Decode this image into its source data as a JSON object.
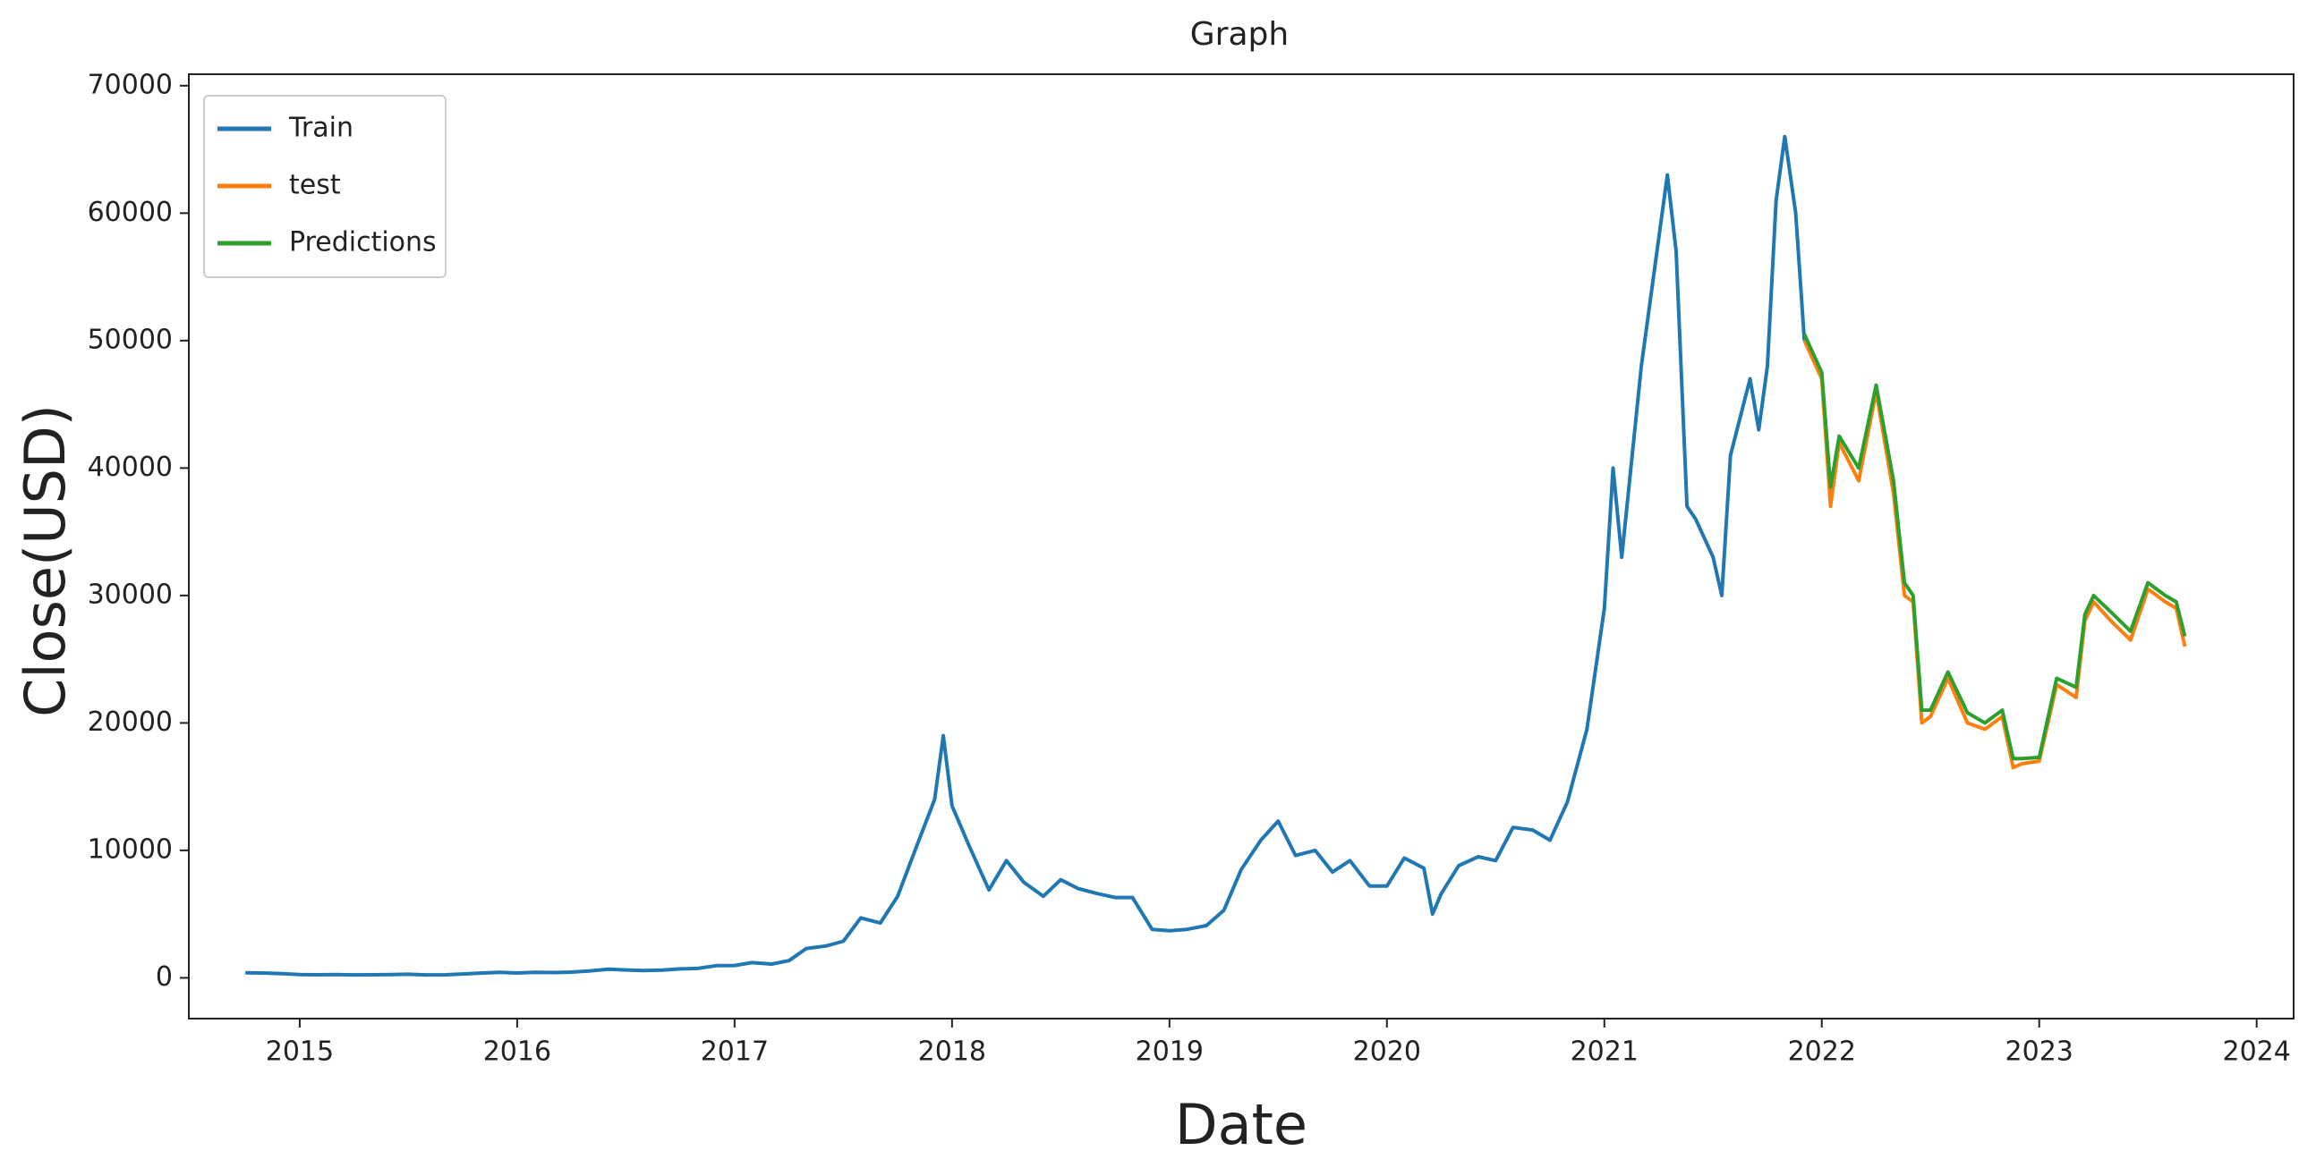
{
  "chart_data": {
    "type": "line",
    "title": "Graph",
    "x_label": "Date",
    "y_label": "Close(USD)",
    "xlim": [
      2014.49,
      2024.17
    ],
    "xticks": [
      2015,
      2016,
      2017,
      2018,
      2019,
      2020,
      2021,
      2022,
      2023,
      2024
    ],
    "ylim": [
      -3200,
      70900
    ],
    "yticks": [
      0,
      10000,
      20000,
      30000,
      40000,
      50000,
      60000,
      70000
    ],
    "legend": "upper left",
    "grid": false,
    "series": [
      {
        "name": "Train",
        "color": "#1f77b4",
        "x": [
          2014.75,
          2014.83,
          2014.92,
          2015.0,
          2015.08,
          2015.17,
          2015.25,
          2015.33,
          2015.42,
          2015.5,
          2015.58,
          2015.67,
          2015.75,
          2015.83,
          2015.92,
          2016.0,
          2016.08,
          2016.17,
          2016.25,
          2016.33,
          2016.42,
          2016.5,
          2016.58,
          2016.67,
          2016.75,
          2016.83,
          2016.92,
          2017.0,
          2017.08,
          2017.17,
          2017.25,
          2017.33,
          2017.42,
          2017.5,
          2017.58,
          2017.67,
          2017.75,
          2017.83,
          2017.92,
          2017.96,
          2018.0,
          2018.08,
          2018.17,
          2018.25,
          2018.33,
          2018.42,
          2018.5,
          2018.58,
          2018.67,
          2018.75,
          2018.83,
          2018.92,
          2019.0,
          2019.08,
          2019.17,
          2019.25,
          2019.33,
          2019.42,
          2019.5,
          2019.58,
          2019.67,
          2019.75,
          2019.83,
          2019.92,
          2020.0,
          2020.08,
          2020.17,
          2020.21,
          2020.25,
          2020.33,
          2020.42,
          2020.5,
          2020.58,
          2020.67,
          2020.75,
          2020.83,
          2020.92,
          2021.0,
          2021.04,
          2021.08,
          2021.17,
          2021.25,
          2021.29,
          2021.33,
          2021.38,
          2021.42,
          2021.5,
          2021.54,
          2021.58,
          2021.67,
          2021.71,
          2021.75,
          2021.79,
          2021.83,
          2021.88,
          2021.92
        ],
        "values": [
          400,
          380,
          320,
          250,
          240,
          250,
          230,
          235,
          250,
          280,
          230,
          235,
          300,
          370,
          430,
          380,
          430,
          415,
          450,
          530,
          680,
          620,
          575,
          610,
          700,
          740,
          960,
          970,
          1190,
          1080,
          1350,
          2300,
          2500,
          2870,
          4700,
          4300,
          6400,
          10000,
          14000,
          19000,
          13500,
          10300,
          6900,
          9200,
          7500,
          6400,
          7700,
          7000,
          6600,
          6300,
          6300,
          3800,
          3700,
          3800,
          4100,
          5300,
          8500,
          10800,
          12300,
          9600,
          10000,
          8300,
          9200,
          7200,
          7200,
          9400,
          8600,
          5000,
          6600,
          8800,
          9500,
          9200,
          11800,
          11600,
          10800,
          13800,
          19500,
          29000,
          40000,
          33000,
          48000,
          58000,
          63000,
          57000,
          37000,
          36000,
          33000,
          30000,
          41000,
          47000,
          43000,
          48000,
          61000,
          66000,
          60000,
          50000
        ]
      },
      {
        "name": "test",
        "color": "#ff7f0e",
        "x": [
          2021.92,
          2022.0,
          2022.04,
          2022.08,
          2022.17,
          2022.25,
          2022.33,
          2022.38,
          2022.42,
          2022.46,
          2022.5,
          2022.58,
          2022.67,
          2022.75,
          2022.83,
          2022.88,
          2022.92,
          2023.0,
          2023.08,
          2023.17,
          2023.21,
          2023.25,
          2023.33,
          2023.42,
          2023.5,
          2023.58,
          2023.63,
          2023.67
        ],
        "values": [
          50000,
          47000,
          37000,
          42000,
          39000,
          46000,
          38000,
          30000,
          29500,
          20000,
          20500,
          23500,
          20000,
          19500,
          20500,
          16500,
          16800,
          17000,
          23000,
          22000,
          28000,
          29500,
          28000,
          26500,
          30500,
          29500,
          29000,
          26000
        ]
      },
      {
        "name": "Predictions",
        "color": "#2ca02c",
        "x": [
          2021.92,
          2022.0,
          2022.04,
          2022.08,
          2022.17,
          2022.25,
          2022.33,
          2022.38,
          2022.42,
          2022.46,
          2022.5,
          2022.58,
          2022.67,
          2022.75,
          2022.83,
          2022.88,
          2022.92,
          2023.0,
          2023.08,
          2023.17,
          2023.21,
          2023.25,
          2023.33,
          2023.42,
          2023.5,
          2023.58,
          2023.63,
          2023.67
        ],
        "values": [
          50500,
          47500,
          38500,
          42500,
          40000,
          46500,
          39000,
          31000,
          30000,
          21000,
          21000,
          24000,
          20800,
          20000,
          21000,
          17200,
          17200,
          17300,
          23500,
          22800,
          28500,
          30000,
          28700,
          27200,
          31000,
          30000,
          29500,
          26800
        ]
      }
    ]
  }
}
